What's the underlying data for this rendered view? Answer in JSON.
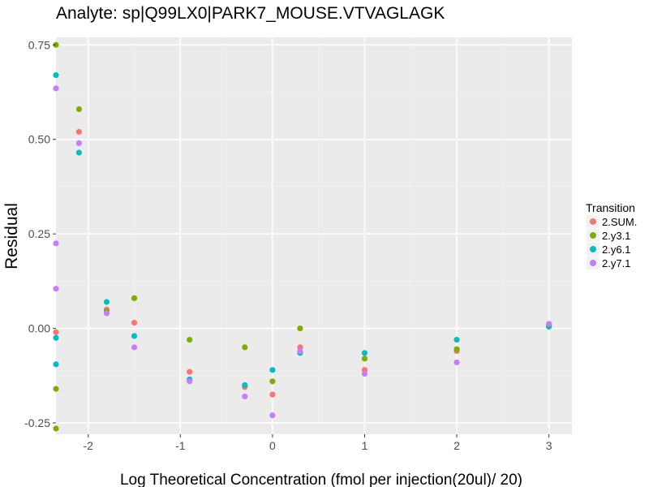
{
  "chart_data": {
    "type": "scatter",
    "title": "Analyte: sp|Q99LX0|PARK7_MOUSE.VTVAGLAGK",
    "xlabel": "Log Theoretical Concentration (fmol per injection(20ul)/ 20)",
    "ylabel": "Residual",
    "xlim": [
      -2.35,
      3.25
    ],
    "ylim": [
      -0.28,
      0.77
    ],
    "x_ticks": [
      {
        "value": -2,
        "label": "-2"
      },
      {
        "value": -1,
        "label": "-1"
      },
      {
        "value": 0,
        "label": "0"
      },
      {
        "value": 1,
        "label": "1"
      },
      {
        "value": 2,
        "label": "2"
      },
      {
        "value": 3,
        "label": "3"
      }
    ],
    "y_ticks": [
      {
        "value": -0.25,
        "label": "-0.25"
      },
      {
        "value": 0.0,
        "label": "0.00"
      },
      {
        "value": 0.25,
        "label": "0.25"
      },
      {
        "value": 0.5,
        "label": "0.50"
      },
      {
        "value": 0.75,
        "label": "0.75"
      }
    ],
    "grid": true,
    "background_color": "#ebebeb",
    "legend": {
      "title": "Transition",
      "position": "right"
    },
    "series": [
      {
        "name": "2.SUM.",
        "color": "#f8766d",
        "points": [
          {
            "x": -2.35,
            "y": -0.01
          },
          {
            "x": -2.1,
            "y": 0.52
          },
          {
            "x": -1.8,
            "y": 0.05
          },
          {
            "x": -1.5,
            "y": 0.015
          },
          {
            "x": -0.9,
            "y": -0.115
          },
          {
            "x": -0.3,
            "y": -0.155
          },
          {
            "x": 0.0,
            "y": -0.175
          },
          {
            "x": 0.3,
            "y": -0.05
          },
          {
            "x": 1.0,
            "y": -0.11
          },
          {
            "x": 2.0,
            "y": -0.06
          },
          {
            "x": 3.0,
            "y": 0.01
          }
        ]
      },
      {
        "name": "2.y3.1",
        "color": "#7cae00",
        "points": [
          {
            "x": -2.35,
            "y": 0.75
          },
          {
            "x": -2.35,
            "y": -0.16
          },
          {
            "x": -2.35,
            "y": -0.265
          },
          {
            "x": -2.1,
            "y": 0.58
          },
          {
            "x": -1.8,
            "y": 0.045
          },
          {
            "x": -1.5,
            "y": 0.08
          },
          {
            "x": -0.9,
            "y": -0.03
          },
          {
            "x": -0.3,
            "y": -0.05
          },
          {
            "x": 0.0,
            "y": -0.14
          },
          {
            "x": 0.3,
            "y": 0.0
          },
          {
            "x": 1.0,
            "y": -0.08
          },
          {
            "x": 2.0,
            "y": -0.055
          },
          {
            "x": 3.0,
            "y": 0.005
          }
        ]
      },
      {
        "name": "2.y6.1",
        "color": "#00bfc4",
        "points": [
          {
            "x": -2.35,
            "y": 0.67
          },
          {
            "x": -2.35,
            "y": -0.025
          },
          {
            "x": -2.35,
            "y": -0.095
          },
          {
            "x": -2.1,
            "y": 0.465
          },
          {
            "x": -1.8,
            "y": 0.07
          },
          {
            "x": -1.5,
            "y": -0.02
          },
          {
            "x": -0.9,
            "y": -0.135
          },
          {
            "x": -0.3,
            "y": -0.15
          },
          {
            "x": 0.0,
            "y": -0.11
          },
          {
            "x": 0.3,
            "y": -0.065
          },
          {
            "x": 1.0,
            "y": -0.065
          },
          {
            "x": 2.0,
            "y": -0.03
          },
          {
            "x": 3.0,
            "y": 0.005
          }
        ]
      },
      {
        "name": "2.y7.1",
        "color": "#c77cff",
        "points": [
          {
            "x": -2.35,
            "y": 0.635
          },
          {
            "x": -2.35,
            "y": 0.225
          },
          {
            "x": -2.35,
            "y": 0.105
          },
          {
            "x": -2.1,
            "y": 0.49
          },
          {
            "x": -1.8,
            "y": 0.04
          },
          {
            "x": -1.5,
            "y": -0.05
          },
          {
            "x": -0.9,
            "y": -0.14
          },
          {
            "x": -0.3,
            "y": -0.18
          },
          {
            "x": 0.0,
            "y": -0.23
          },
          {
            "x": 0.3,
            "y": -0.06
          },
          {
            "x": 1.0,
            "y": -0.12
          },
          {
            "x": 2.0,
            "y": -0.09
          },
          {
            "x": 3.0,
            "y": 0.012
          }
        ]
      }
    ]
  }
}
